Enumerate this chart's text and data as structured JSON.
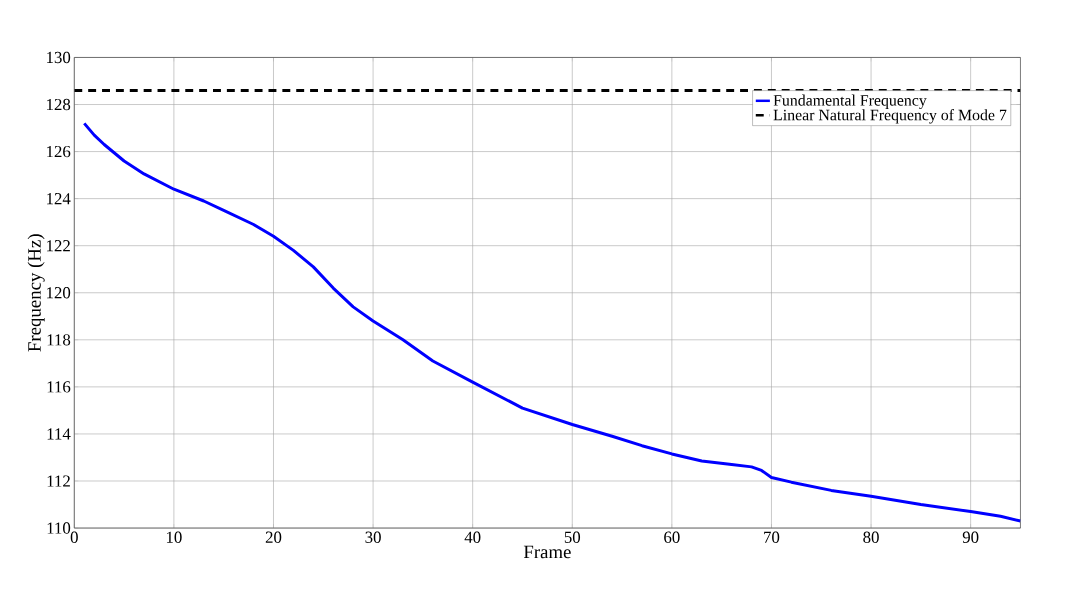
{
  "chart_data": {
    "type": "line",
    "xlabel": "Frame",
    "ylabel": "Frequency (Hz)",
    "xlim": [
      0,
      95
    ],
    "ylim": [
      110,
      130
    ],
    "xticks": [
      0,
      10,
      20,
      30,
      40,
      50,
      60,
      70,
      80,
      90
    ],
    "yticks": [
      110,
      112,
      114,
      116,
      118,
      120,
      122,
      124,
      126,
      128,
      130
    ],
    "grid": true,
    "legend": "top right",
    "series": [
      {
        "name": "Fundamental Frequency",
        "color": "#0000ff",
        "line_style": "solid",
        "x": [
          1,
          2,
          3,
          5,
          7,
          10,
          13,
          15,
          18,
          20,
          22,
          24,
          26,
          28,
          30,
          33,
          36,
          40,
          45,
          50,
          54,
          57,
          60,
          63,
          66,
          68,
          69,
          70,
          72,
          76,
          80,
          85,
          90,
          93,
          95
        ],
        "values": [
          127.2,
          126.7,
          126.3,
          125.6,
          125.05,
          124.4,
          123.9,
          123.5,
          122.9,
          122.4,
          121.8,
          121.1,
          120.2,
          119.4,
          118.8,
          118.0,
          117.1,
          116.2,
          115.1,
          114.4,
          113.9,
          113.5,
          113.15,
          112.85,
          112.7,
          112.6,
          112.45,
          112.15,
          111.95,
          111.6,
          111.35,
          111.0,
          110.7,
          110.5,
          110.3
        ]
      },
      {
        "name": "Linear Natural Frequency of Mode 7",
        "color": "#000000",
        "line_style": "dashed",
        "x": [
          0,
          95
        ],
        "values": [
          128.6,
          128.6
        ]
      }
    ]
  }
}
